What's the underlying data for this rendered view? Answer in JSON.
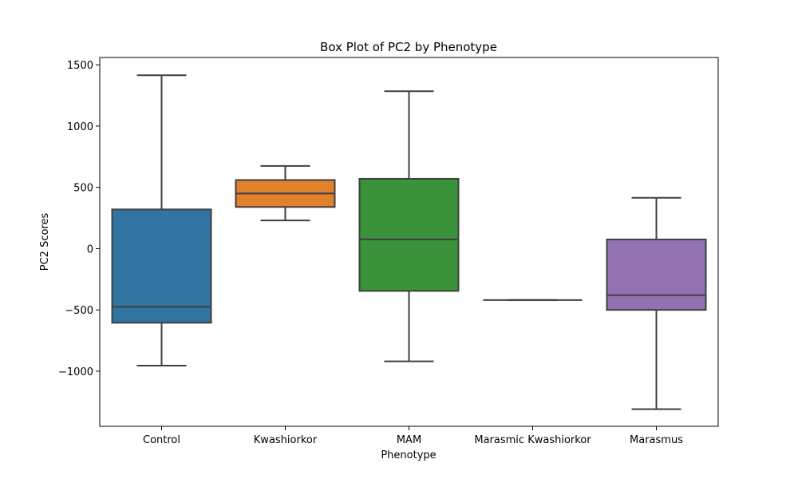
{
  "chart_data": {
    "type": "box",
    "title": "Box Plot of PC2 by Phenotype",
    "xlabel": "Phenotype",
    "ylabel": "PC2 Scores",
    "ylim": [
      -1450,
      1560
    ],
    "yticks": [
      -1000,
      -500,
      0,
      500,
      1000,
      1500
    ],
    "ytick_labels": [
      "−1000",
      "−500",
      "0",
      "500",
      "1000",
      "1500"
    ],
    "grid": false,
    "categories": [
      "Control",
      "Kwashiorkor",
      "MAM",
      "Marasmic Kwashiorkor",
      "Marasmus"
    ],
    "boxes": [
      {
        "category": "Control",
        "whisker_low": -955,
        "q1": -605,
        "median": -475,
        "q3": 320,
        "whisker_high": 1415,
        "color": "#3274a1"
      },
      {
        "category": "Kwashiorkor",
        "whisker_low": 230,
        "q1": 340,
        "median": 450,
        "q3": 560,
        "whisker_high": 675,
        "color": "#e1812c"
      },
      {
        "category": "MAM",
        "whisker_low": -920,
        "q1": -345,
        "median": 75,
        "q3": 570,
        "whisker_high": 1285,
        "color": "#3a923a"
      },
      {
        "category": "Marasmic Kwashiorkor",
        "whisker_low": -420,
        "q1": -420,
        "median": -420,
        "q3": -420,
        "whisker_high": -420,
        "color": "#c03d3e"
      },
      {
        "category": "Marasmus",
        "whisker_low": -1310,
        "q1": -500,
        "median": -380,
        "q3": 75,
        "whisker_high": 415,
        "color": "#9372b2"
      }
    ],
    "line_color": "#3f3f3f"
  }
}
